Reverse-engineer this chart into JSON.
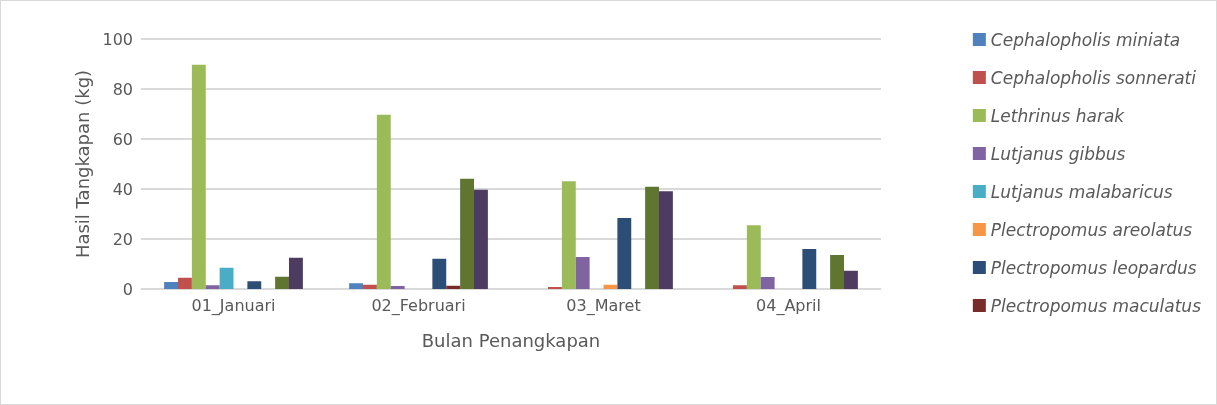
{
  "chart_data": {
    "type": "bar",
    "xlabel": "Bulan Penangkapan",
    "ylabel": "Hasil Tangkapan (kg)",
    "categories": [
      "01_Januari",
      "02_Februari",
      "03_Maret",
      "04_April"
    ],
    "ylim": [
      0,
      100
    ],
    "yticks": [
      0,
      20,
      40,
      60,
      80,
      100
    ],
    "grid": "y",
    "legend": "right",
    "series": [
      {
        "name": "Cephalopholis miniata",
        "color": "#4f81bd",
        "values": [
          2.8,
          2.3,
          null,
          null
        ]
      },
      {
        "name": "Cephalopholis sonnerati",
        "color": "#c0504d",
        "values": [
          4.5,
          1.7,
          0.8,
          1.5
        ]
      },
      {
        "name": "Lethrinus harak",
        "color": "#9bbb59",
        "values": [
          89.7,
          69.7,
          43.1,
          25.5
        ]
      },
      {
        "name": "Lutjanus gibbus",
        "color": "#8064a2",
        "values": [
          1.5,
          1.2,
          12.8,
          4.8
        ]
      },
      {
        "name": "Lutjanus malabaricus",
        "color": "#4bacc6",
        "values": [
          8.5,
          null,
          null,
          null
        ]
      },
      {
        "name": "Plectropomus areolatus",
        "color": "#f79646",
        "values": [
          null,
          null,
          1.7,
          null
        ]
      },
      {
        "name": "Plectropomus leopardus",
        "color": "#2c4d75",
        "values": [
          3.1,
          12.1,
          28.4,
          16
        ]
      },
      {
        "name": "Plectropomus maculatus",
        "color": "#772c2a",
        "values": [
          null,
          1.3,
          null,
          null
        ]
      },
      {
        "color": "#5f7530",
        "values": [
          4.9,
          44.1,
          40.9,
          13.6
        ]
      },
      {
        "color": "#4d3b62",
        "values": [
          12.5,
          39.7,
          39.1,
          7.3
        ]
      }
    ]
  }
}
